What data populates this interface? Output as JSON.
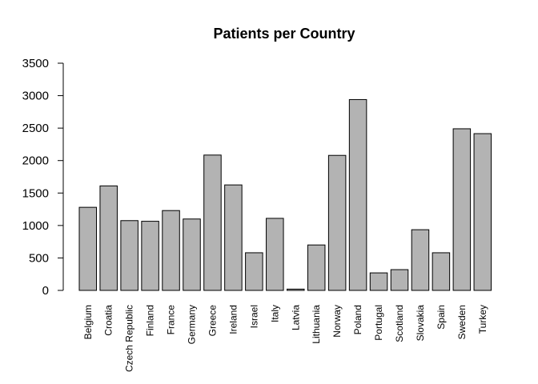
{
  "chart_data": {
    "type": "bar",
    "title": "Patients per Country",
    "xlabel": "",
    "ylabel": "",
    "categories": [
      "Belgium",
      "Croatia",
      "Czech Republic",
      "Finland",
      "France",
      "Germany",
      "Greece",
      "Ireland",
      "Israel",
      "Italy",
      "Latvia",
      "Lithuania",
      "Norway",
      "Poland",
      "Portugal",
      "Scotland",
      "Slovakia",
      "Spain",
      "Sweden",
      "Turkey"
    ],
    "values": [
      1280,
      1610,
      1075,
      1065,
      1230,
      1100,
      2085,
      1625,
      580,
      1110,
      20,
      700,
      2080,
      2940,
      270,
      320,
      935,
      580,
      2490,
      2415
    ],
    "ylim": [
      0,
      3500
    ],
    "yticks": [
      "0",
      "500",
      "1000",
      "1500",
      "2000",
      "2500",
      "3000",
      "3500"
    ],
    "grid": false,
    "bar_color": "#b3b3b3",
    "border_color": "#000000"
  }
}
